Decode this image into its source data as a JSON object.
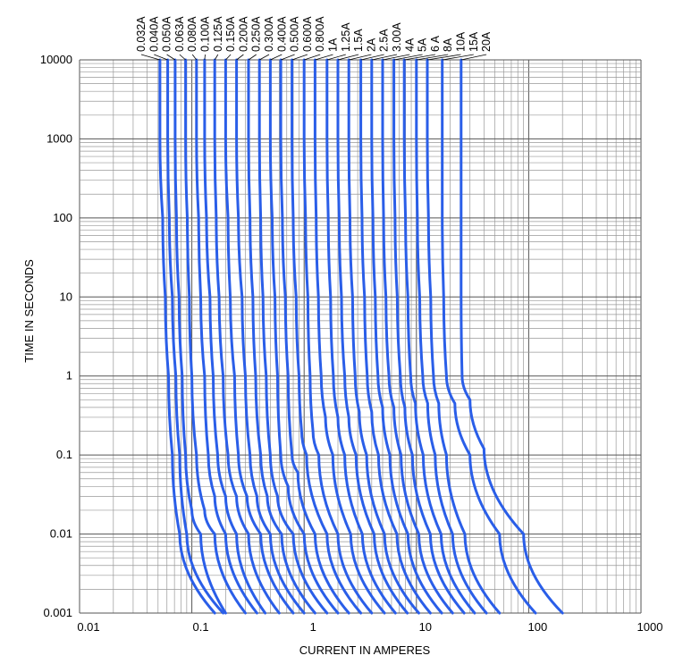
{
  "chart_data": {
    "type": "line",
    "title": "",
    "xlabel": "CURRENT IN AMPERES",
    "ylabel": "TIME IN SECONDS",
    "x_scale": "log",
    "y_scale": "log",
    "xlim": [
      0.01,
      1000
    ],
    "ylim": [
      0.001,
      10000
    ],
    "x_ticks": [
      "0.01",
      "0.1",
      "1",
      "10",
      "100",
      "1000"
    ],
    "y_ticks": [
      "0.001",
      "0.01",
      "0.1",
      "1",
      "10",
      "100",
      "1000",
      "10000"
    ],
    "grid": true,
    "series": [
      {
        "name": "0.032A",
        "points": [
          [
            0.052,
            10000
          ],
          [
            0.052,
            1000
          ],
          [
            0.055,
            100
          ],
          [
            0.058,
            10
          ],
          [
            0.062,
            1
          ],
          [
            0.067,
            0.1
          ],
          [
            0.078,
            0.01
          ],
          [
            0.16,
            0.001
          ]
        ]
      },
      {
        "name": "0.040A",
        "points": [
          [
            0.061,
            10000
          ],
          [
            0.061,
            1000
          ],
          [
            0.063,
            100
          ],
          [
            0.067,
            10
          ],
          [
            0.072,
            1
          ],
          [
            0.078,
            0.1
          ],
          [
            0.09,
            0.01
          ],
          [
            0.19,
            0.001
          ]
        ]
      },
      {
        "name": "0.050A",
        "points": [
          [
            0.071,
            10000
          ],
          [
            0.071,
            1000
          ],
          [
            0.073,
            100
          ],
          [
            0.077,
            10
          ],
          [
            0.082,
            1
          ],
          [
            0.088,
            0.1
          ],
          [
            0.1,
            0.02
          ],
          [
            0.12,
            0.01
          ],
          [
            0.2,
            0.001
          ]
        ]
      },
      {
        "name": "0.063A",
        "points": [
          [
            0.088,
            10000
          ],
          [
            0.088,
            1000
          ],
          [
            0.091,
            100
          ],
          [
            0.095,
            10
          ],
          [
            0.1,
            1
          ],
          [
            0.11,
            0.1
          ],
          [
            0.13,
            0.02
          ],
          [
            0.16,
            0.01
          ],
          [
            0.3,
            0.001
          ]
        ]
      },
      {
        "name": "0.080A",
        "points": [
          [
            0.11,
            10000
          ],
          [
            0.11,
            1000
          ],
          [
            0.115,
            100
          ],
          [
            0.12,
            10
          ],
          [
            0.13,
            1
          ],
          [
            0.14,
            0.1
          ],
          [
            0.16,
            0.03
          ],
          [
            0.2,
            0.01
          ],
          [
            0.38,
            0.001
          ]
        ]
      },
      {
        "name": "0.100A",
        "points": [
          [
            0.13,
            10000
          ],
          [
            0.13,
            1000
          ],
          [
            0.135,
            100
          ],
          [
            0.145,
            10
          ],
          [
            0.155,
            1
          ],
          [
            0.17,
            0.1
          ],
          [
            0.2,
            0.03
          ],
          [
            0.25,
            0.01
          ],
          [
            0.45,
            0.001
          ]
        ]
      },
      {
        "name": "0.125A",
        "points": [
          [
            0.16,
            10000
          ],
          [
            0.16,
            1000
          ],
          [
            0.165,
            100
          ],
          [
            0.175,
            10
          ],
          [
            0.19,
            1
          ],
          [
            0.21,
            0.1
          ],
          [
            0.25,
            0.03
          ],
          [
            0.32,
            0.01
          ],
          [
            0.6,
            0.001
          ]
        ]
      },
      {
        "name": "0.150A",
        "points": [
          [
            0.2,
            10000
          ],
          [
            0.2,
            1000
          ],
          [
            0.21,
            100
          ],
          [
            0.22,
            10
          ],
          [
            0.24,
            1
          ],
          [
            0.26,
            0.1
          ],
          [
            0.31,
            0.03
          ],
          [
            0.41,
            0.01
          ],
          [
            0.8,
            0.001
          ]
        ]
      },
      {
        "name": "0.200A",
        "points": [
          [
            0.25,
            10000
          ],
          [
            0.25,
            1000
          ],
          [
            0.26,
            100
          ],
          [
            0.28,
            10
          ],
          [
            0.3,
            1
          ],
          [
            0.33,
            0.1
          ],
          [
            0.38,
            0.03
          ],
          [
            0.5,
            0.01
          ],
          [
            1,
            0.001
          ]
        ]
      },
      {
        "name": "0.250A",
        "points": [
          [
            0.32,
            10000
          ],
          [
            0.32,
            1000
          ],
          [
            0.33,
            100
          ],
          [
            0.35,
            10
          ],
          [
            0.37,
            1
          ],
          [
            0.41,
            0.1
          ],
          [
            0.47,
            0.03
          ],
          [
            0.63,
            0.01
          ],
          [
            1.25,
            0.001
          ]
        ]
      },
      {
        "name": "0.300A",
        "points": [
          [
            0.4,
            10000
          ],
          [
            0.4,
            1000
          ],
          [
            0.41,
            100
          ],
          [
            0.43,
            10
          ],
          [
            0.46,
            1
          ],
          [
            0.5,
            0.1
          ],
          [
            0.58,
            0.03
          ],
          [
            0.8,
            0.01
          ],
          [
            1.6,
            0.001
          ]
        ]
      },
      {
        "name": "0.400A",
        "points": [
          [
            0.5,
            10000
          ],
          [
            0.5,
            1000
          ],
          [
            0.52,
            100
          ],
          [
            0.55,
            10
          ],
          [
            0.58,
            1
          ],
          [
            0.62,
            0.1
          ],
          [
            0.72,
            0.04
          ],
          [
            1,
            0.01
          ],
          [
            2,
            0.001
          ]
        ]
      },
      {
        "name": "0.500A",
        "points": [
          [
            0.62,
            10000
          ],
          [
            0.62,
            1000
          ],
          [
            0.64,
            100
          ],
          [
            0.68,
            10
          ],
          [
            0.72,
            1
          ],
          [
            0.78,
            0.1
          ],
          [
            0.88,
            0.06
          ],
          [
            1.25,
            0.01
          ],
          [
            2.5,
            0.001
          ]
        ]
      },
      {
        "name": "0.600A",
        "points": [
          [
            0.78,
            10000
          ],
          [
            0.78,
            1000
          ],
          [
            0.8,
            100
          ],
          [
            0.85,
            10
          ],
          [
            0.9,
            1
          ],
          [
            0.95,
            0.2
          ],
          [
            1.05,
            0.1
          ],
          [
            1.6,
            0.01
          ],
          [
            3.2,
            0.001
          ]
        ]
      },
      {
        "name": "0.800A",
        "points": [
          [
            1,
            10000
          ],
          [
            1,
            1000
          ],
          [
            1.03,
            100
          ],
          [
            1.08,
            10
          ],
          [
            1.13,
            1
          ],
          [
            1.2,
            0.2
          ],
          [
            1.35,
            0.1
          ],
          [
            2,
            0.01
          ],
          [
            4,
            0.001
          ]
        ]
      },
      {
        "name": "1A",
        "points": [
          [
            1.25,
            10000
          ],
          [
            1.25,
            1000
          ],
          [
            1.28,
            100
          ],
          [
            1.34,
            10
          ],
          [
            1.42,
            1
          ],
          [
            1.55,
            0.3
          ],
          [
            1.8,
            0.1
          ],
          [
            2.6,
            0.01
          ],
          [
            5.2,
            0.001
          ]
        ]
      },
      {
        "name": "1.25A",
        "points": [
          [
            1.6,
            10000
          ],
          [
            1.6,
            1000
          ],
          [
            1.64,
            100
          ],
          [
            1.72,
            10
          ],
          [
            1.82,
            1
          ],
          [
            2,
            0.3
          ],
          [
            2.3,
            0.1
          ],
          [
            3.3,
            0.01
          ],
          [
            6.5,
            0.001
          ]
        ]
      },
      {
        "name": "1.5A",
        "points": [
          [
            2,
            10000
          ],
          [
            2,
            1000
          ],
          [
            2.05,
            100
          ],
          [
            2.15,
            10
          ],
          [
            2.3,
            1
          ],
          [
            2.5,
            0.3
          ],
          [
            2.9,
            0.1
          ],
          [
            4.2,
            0.01
          ],
          [
            8.3,
            0.001
          ]
        ]
      },
      {
        "name": "2A",
        "points": [
          [
            2.5,
            10000
          ],
          [
            2.5,
            1000
          ],
          [
            2.56,
            100
          ],
          [
            2.7,
            10
          ],
          [
            2.85,
            1
          ],
          [
            3.1,
            0.35
          ],
          [
            3.6,
            0.1
          ],
          [
            5.2,
            0.01
          ],
          [
            10.5,
            0.001
          ]
        ]
      },
      {
        "name": "2.5A",
        "points": [
          [
            3.2,
            10000
          ],
          [
            3.2,
            1000
          ],
          [
            3.28,
            100
          ],
          [
            3.45,
            10
          ],
          [
            3.65,
            1
          ],
          [
            4,
            0.35
          ],
          [
            4.6,
            0.1
          ],
          [
            6.7,
            0.01
          ],
          [
            13.3,
            0.001
          ]
        ]
      },
      {
        "name": "3.00A",
        "points": [
          [
            4,
            10000
          ],
          [
            4,
            1000
          ],
          [
            4.1,
            100
          ],
          [
            4.3,
            10
          ],
          [
            4.55,
            1
          ],
          [
            5,
            0.4
          ],
          [
            5.8,
            0.1
          ],
          [
            8.4,
            0.01
          ],
          [
            16.8,
            0.001
          ]
        ]
      },
      {
        "name": "4A",
        "points": [
          [
            5,
            10000
          ],
          [
            5,
            1000
          ],
          [
            5.1,
            100
          ],
          [
            5.35,
            10
          ],
          [
            5.7,
            1
          ],
          [
            6.3,
            0.4
          ],
          [
            7.3,
            0.1
          ],
          [
            10.5,
            0.01
          ],
          [
            21,
            0.001
          ]
        ]
      },
      {
        "name": "5A",
        "points": [
          [
            6.3,
            10000
          ],
          [
            6.3,
            1000
          ],
          [
            6.45,
            100
          ],
          [
            6.75,
            10
          ],
          [
            7.2,
            1
          ],
          [
            7.9,
            0.4
          ],
          [
            9.2,
            0.1
          ],
          [
            13.3,
            0.01
          ],
          [
            26.6,
            0.001
          ]
        ]
      },
      {
        "name": "6 A",
        "points": [
          [
            7.8,
            10000
          ],
          [
            7.8,
            1000
          ],
          [
            8,
            100
          ],
          [
            8.4,
            10
          ],
          [
            8.9,
            1
          ],
          [
            9.8,
            0.45
          ],
          [
            11.5,
            0.1
          ],
          [
            16.6,
            0.01
          ],
          [
            33,
            0.001
          ]
        ]
      },
      {
        "name": "8A",
        "points": [
          [
            10,
            10000
          ],
          [
            10,
            1000
          ],
          [
            10.2,
            100
          ],
          [
            10.7,
            10
          ],
          [
            11.4,
            1
          ],
          [
            12.6,
            0.45
          ],
          [
            14.7,
            0.1
          ],
          [
            21,
            0.01
          ],
          [
            42,
            0.001
          ]
        ]
      },
      {
        "name": "10A",
        "points": [
          [
            12.5,
            10000
          ],
          [
            12.5,
            1000
          ],
          [
            12.8,
            100
          ],
          [
            13.4,
            10
          ],
          [
            14.2,
            1
          ],
          [
            15.8,
            0.45
          ],
          [
            18.5,
            0.1
          ],
          [
            27,
            0.01
          ],
          [
            55,
            0.001
          ]
        ]
      },
      {
        "name": "15A",
        "points": [
          [
            17,
            10000
          ],
          [
            17,
            1000
          ],
          [
            17,
            100
          ],
          [
            17.5,
            10
          ],
          [
            18.5,
            1
          ],
          [
            22,
            0.45
          ],
          [
            30,
            0.1
          ],
          [
            55,
            0.01
          ],
          [
            115,
            0.001
          ]
        ]
      },
      {
        "name": "20A",
        "points": [
          [
            25,
            10000
          ],
          [
            25,
            1000
          ],
          [
            25,
            100
          ],
          [
            25,
            10
          ],
          [
            25.5,
            1
          ],
          [
            30,
            0.5
          ],
          [
            40,
            0.12
          ],
          [
            90,
            0.01
          ],
          [
            200,
            0.001
          ]
        ]
      }
    ]
  },
  "colors": {
    "curve": "#2a5ee8",
    "grid_major": "#555555",
    "grid_minor": "#999999"
  }
}
